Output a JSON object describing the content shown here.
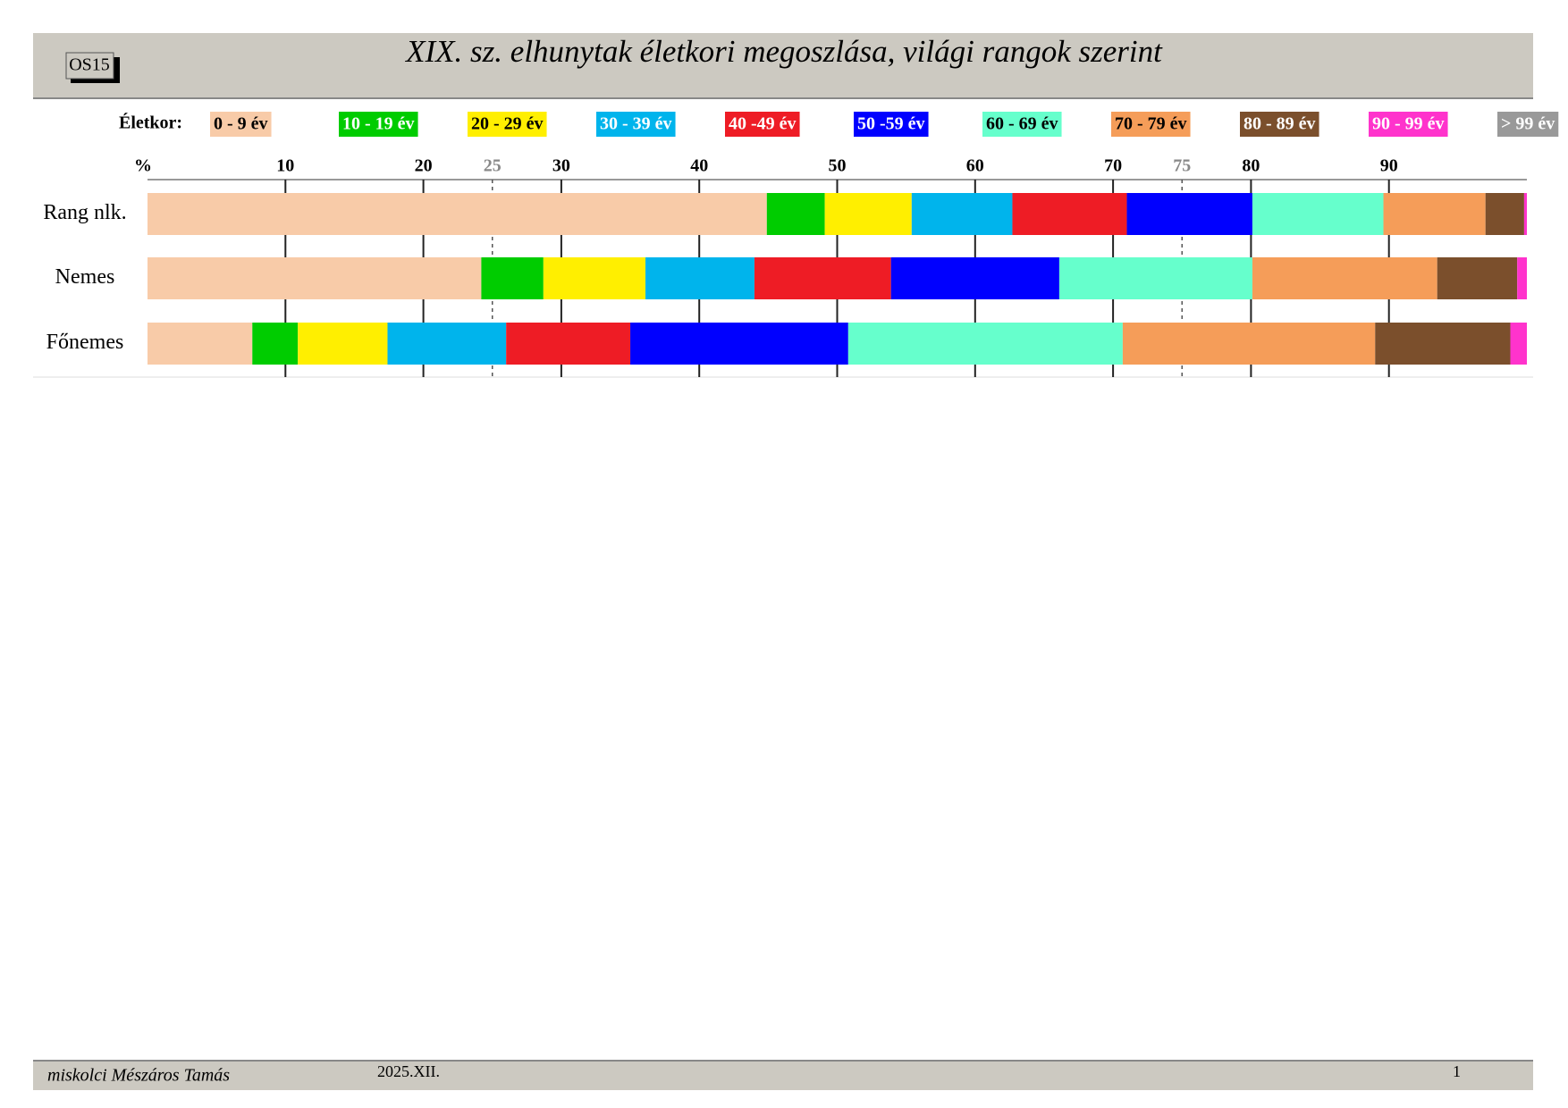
{
  "header": {
    "code": "OS15"
  },
  "chart_data": {
    "type": "stacked-bar-horizontal",
    "title": "XIX. sz. elhunytak életkori megoszlása, világi rangok szerint",
    "legend_title": "Életkor:",
    "xlabel": "%",
    "categories": [
      "Rang nlk.",
      "Nemes",
      "Főnemes"
    ],
    "series": [
      {
        "name": "0 - 9 év",
        "color": "#f8cba8",
        "values": [
          44.9,
          24.2,
          7.6
        ]
      },
      {
        "name": "10 - 19 év",
        "color": "#00cc00",
        "values": [
          4.2,
          4.5,
          3.3
        ]
      },
      {
        "name": "20 - 29 év",
        "color": "#ffef00",
        "values": [
          6.3,
          7.4,
          6.5
        ]
      },
      {
        "name": "30 - 39 év",
        "color": "#00b4ec",
        "values": [
          7.3,
          7.9,
          8.6
        ]
      },
      {
        "name": "40 -49 év",
        "color": "#ee1c25",
        "values": [
          8.3,
          9.9,
          9.0
        ]
      },
      {
        "name": "50 -59 év",
        "color": "#0000ff",
        "values": [
          9.1,
          12.2,
          15.8
        ]
      },
      {
        "name": "60 - 69 év",
        "color": "#66ffcc",
        "values": [
          9.5,
          14.0,
          19.9
        ]
      },
      {
        "name": "70 - 79 év",
        "color": "#f59d59",
        "values": [
          7.4,
          13.4,
          18.3
        ]
      },
      {
        "name": "80 - 89 év",
        "color": "#7b4f2c",
        "values": [
          2.8,
          5.8,
          9.8
        ]
      },
      {
        "name": "90 - 99 év",
        "color": "#ff33cc",
        "values": [
          0.2,
          0.7,
          1.2
        ]
      },
      {
        "name": "> 99 év",
        "color": "#999999",
        "values": [
          0,
          0,
          0
        ]
      }
    ],
    "xlim": [
      0,
      100
    ],
    "xticks": [
      10,
      20,
      30,
      40,
      50,
      60,
      70,
      80,
      90
    ],
    "minor_xticks": [
      25,
      75
    ]
  },
  "footer": {
    "author": "miskolci Mészáros Tamás",
    "date": "2025.XII.",
    "page": "1"
  }
}
